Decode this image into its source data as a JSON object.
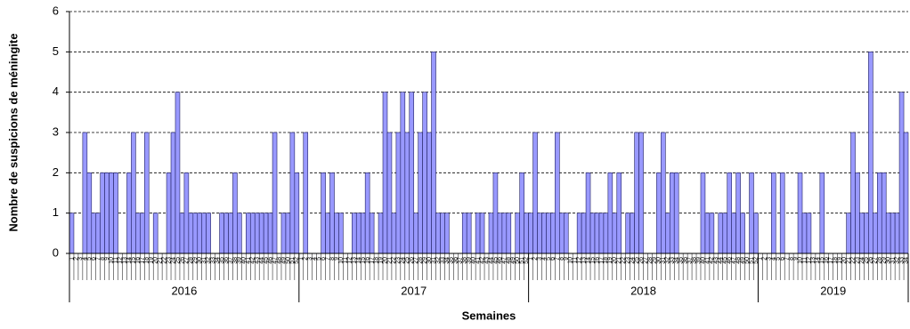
{
  "chart_data": {
    "type": "bar",
    "y_label": "Nombre de suspicions de méningite",
    "x_label": "Semaines",
    "color": "#9999ff",
    "ylim": [
      0,
      6
    ],
    "yticks": [
      0,
      1,
      2,
      3,
      4,
      5,
      6
    ],
    "grid": true,
    "groups": [
      {
        "label": "2016",
        "categories": [
          "1",
          "2",
          "3",
          "4",
          "5",
          "6",
          "7",
          "8",
          "9",
          "10",
          "11",
          "12",
          "13",
          "14",
          "15",
          "16",
          "17",
          "18",
          "19",
          "20",
          "21",
          "22",
          "23",
          "24",
          "25",
          "26",
          "27",
          "28",
          "29",
          "30",
          "31",
          "32",
          "33",
          "34",
          "35",
          "36",
          "37",
          "38",
          "39",
          "40",
          "41",
          "42",
          "43",
          "44",
          "45",
          "46",
          "47",
          "48",
          "49",
          "50",
          "51",
          "52"
        ]
      },
      {
        "label": "2017",
        "categories": [
          "1",
          "2",
          "3",
          "4",
          "5",
          "6",
          "7",
          "8",
          "9",
          "10",
          "11",
          "12",
          "13",
          "14",
          "15",
          "16",
          "17",
          "18",
          "19",
          "20",
          "21",
          "22",
          "23",
          "24",
          "25",
          "26",
          "27",
          "28",
          "29",
          "30",
          "31",
          "32",
          "33",
          "34",
          "35",
          "36",
          "37",
          "38",
          "39",
          "40",
          "41",
          "42",
          "43",
          "44",
          "45",
          "46",
          "47",
          "48",
          "49",
          "50",
          "51",
          "52"
        ]
      },
      {
        "label": "2018",
        "categories": [
          "1",
          "2",
          "3",
          "4",
          "5",
          "6",
          "7",
          "8",
          "9",
          "10",
          "11",
          "12",
          "13",
          "14",
          "15",
          "16",
          "17",
          "18",
          "19",
          "20",
          "21",
          "22",
          "23",
          "24",
          "25",
          "26",
          "27",
          "28",
          "29",
          "30",
          "31",
          "32",
          "33",
          "34",
          "35",
          "36",
          "37",
          "38",
          "39",
          "40",
          "41",
          "42",
          "43",
          "44",
          "45",
          "46",
          "47",
          "48",
          "49",
          "50",
          "51",
          "52"
        ]
      },
      {
        "label": "2019",
        "categories": [
          "1",
          "2",
          "3",
          "4",
          "5",
          "6",
          "7",
          "8",
          "9",
          "10",
          "11",
          "12",
          "13",
          "14",
          "15",
          "16",
          "17",
          "18",
          "19",
          "20",
          "21",
          "22",
          "23",
          "24",
          "25",
          "26",
          "27",
          "28",
          "29",
          "30",
          "31",
          "32",
          "33",
          "34"
        ]
      }
    ],
    "values": [
      1,
      0,
      0,
      3,
      2,
      1,
      1,
      2,
      2,
      2,
      2,
      0,
      0,
      2,
      3,
      1,
      1,
      3,
      0,
      1,
      0,
      0,
      2,
      3,
      4,
      1,
      2,
      1,
      1,
      1,
      1,
      1,
      0,
      0,
      1,
      1,
      1,
      2,
      1,
      0,
      1,
      1,
      1,
      1,
      1,
      1,
      3,
      0,
      1,
      1,
      3,
      2,
      0,
      3,
      0,
      0,
      0,
      2,
      1,
      2,
      1,
      1,
      0,
      0,
      1,
      1,
      1,
      2,
      1,
      0,
      1,
      4,
      3,
      1,
      3,
      4,
      3,
      4,
      1,
      3,
      4,
      3,
      5,
      1,
      1,
      1,
      0,
      0,
      0,
      1,
      1,
      0,
      1,
      1,
      0,
      1,
      2,
      1,
      1,
      1,
      0,
      1,
      2,
      1,
      1,
      3,
      1,
      1,
      1,
      1,
      3,
      1,
      1,
      0,
      0,
      1,
      1,
      2,
      1,
      1,
      1,
      1,
      2,
      1,
      2,
      0,
      1,
      1,
      3,
      3,
      0,
      0,
      0,
      2,
      3,
      1,
      2,
      2,
      0,
      0,
      0,
      0,
      0,
      2,
      1,
      1,
      0,
      1,
      1,
      2,
      1,
      2,
      1,
      0,
      2,
      1,
      0,
      0,
      0,
      2,
      0,
      2,
      0,
      0,
      0,
      2,
      1,
      1,
      0,
      0,
      2,
      0,
      0,
      0,
      0,
      0,
      1,
      3,
      2,
      1,
      1,
      5,
      1,
      2,
      2,
      1,
      1,
      1,
      4,
      3
    ]
  }
}
